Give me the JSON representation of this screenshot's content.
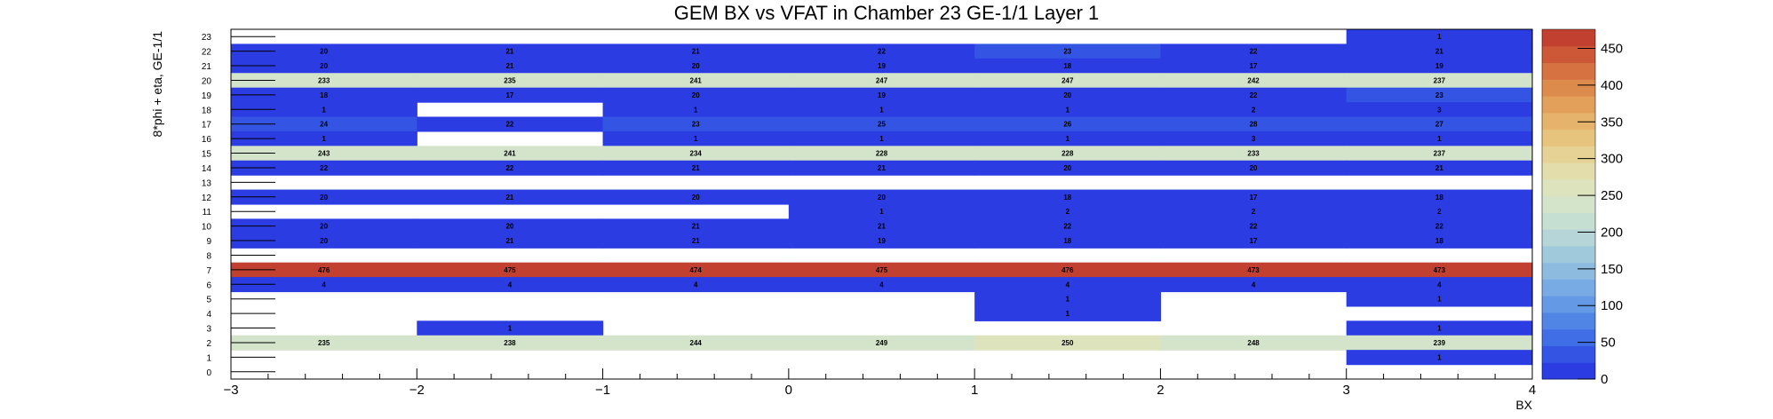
{
  "chart_data": {
    "type": "heatmap",
    "title": "GEM BX vs VFAT in Chamber 23 GE-1/1 Layer 1",
    "xlabel": "BX",
    "ylabel": "8*phi + eta, GE-1/1",
    "xlim": [
      -3,
      4
    ],
    "ylim": [
      0,
      24
    ],
    "x_bins": [
      -2.5,
      -1.5,
      -0.5,
      0.5,
      1.5,
      2.5,
      3.5
    ],
    "x_ticks": [
      -3,
      -2,
      -1,
      0,
      1,
      2,
      3,
      4
    ],
    "x_tick_labels": [
      "−3",
      "−2",
      "−1",
      "0",
      "1",
      "2",
      "3",
      "4"
    ],
    "y_bins": [
      0,
      1,
      2,
      3,
      4,
      5,
      6,
      7,
      8,
      9,
      10,
      11,
      12,
      13,
      14,
      15,
      16,
      17,
      18,
      19,
      20,
      21,
      22,
      23
    ],
    "y_tick_labels": [
      "0",
      "1",
      "2",
      "3",
      "4",
      "5",
      "6",
      "7",
      "8",
      "9",
      "10",
      "11",
      "12",
      "13",
      "14",
      "15",
      "16",
      "17",
      "18",
      "19",
      "20",
      "21",
      "22",
      "23"
    ],
    "zlim": [
      0,
      476
    ],
    "colorbar_ticks": [
      0,
      50,
      100,
      150,
      200,
      250,
      300,
      350,
      400,
      450
    ],
    "colorbar_tick_labels": [
      "0",
      "50",
      "100",
      "150",
      "200",
      "250",
      "300",
      "350",
      "400",
      "450"
    ],
    "cells": [
      {
        "x": 3.5,
        "y": 23,
        "value": 1
      },
      {
        "x": -2.5,
        "y": 22,
        "value": 20
      },
      {
        "x": -1.5,
        "y": 22,
        "value": 21
      },
      {
        "x": -0.5,
        "y": 22,
        "value": 21
      },
      {
        "x": 0.5,
        "y": 22,
        "value": 22
      },
      {
        "x": 1.5,
        "y": 22,
        "value": 23
      },
      {
        "x": 2.5,
        "y": 22,
        "value": 22
      },
      {
        "x": 3.5,
        "y": 22,
        "value": 21
      },
      {
        "x": -2.5,
        "y": 21,
        "value": 20
      },
      {
        "x": -1.5,
        "y": 21,
        "value": 21
      },
      {
        "x": -0.5,
        "y": 21,
        "value": 20
      },
      {
        "x": 0.5,
        "y": 21,
        "value": 19
      },
      {
        "x": 1.5,
        "y": 21,
        "value": 18
      },
      {
        "x": 2.5,
        "y": 21,
        "value": 17
      },
      {
        "x": 3.5,
        "y": 21,
        "value": 19
      },
      {
        "x": -2.5,
        "y": 20,
        "value": 233
      },
      {
        "x": -1.5,
        "y": 20,
        "value": 235
      },
      {
        "x": -0.5,
        "y": 20,
        "value": 241
      },
      {
        "x": 0.5,
        "y": 20,
        "value": 247
      },
      {
        "x": 1.5,
        "y": 20,
        "value": 247
      },
      {
        "x": 2.5,
        "y": 20,
        "value": 242
      },
      {
        "x": 3.5,
        "y": 20,
        "value": 237
      },
      {
        "x": -2.5,
        "y": 19,
        "value": 18
      },
      {
        "x": -1.5,
        "y": 19,
        "value": 17
      },
      {
        "x": -0.5,
        "y": 19,
        "value": 20
      },
      {
        "x": 0.5,
        "y": 19,
        "value": 19
      },
      {
        "x": 1.5,
        "y": 19,
        "value": 20
      },
      {
        "x": 2.5,
        "y": 19,
        "value": 22
      },
      {
        "x": 3.5,
        "y": 19,
        "value": 23
      },
      {
        "x": -2.5,
        "y": 18,
        "value": 1
      },
      {
        "x": -0.5,
        "y": 18,
        "value": 1
      },
      {
        "x": 0.5,
        "y": 18,
        "value": 1
      },
      {
        "x": 1.5,
        "y": 18,
        "value": 1
      },
      {
        "x": 2.5,
        "y": 18,
        "value": 2
      },
      {
        "x": 3.5,
        "y": 18,
        "value": 3
      },
      {
        "x": -2.5,
        "y": 17,
        "value": 24
      },
      {
        "x": -1.5,
        "y": 17,
        "value": 22
      },
      {
        "x": -0.5,
        "y": 17,
        "value": 23
      },
      {
        "x": 0.5,
        "y": 17,
        "value": 25
      },
      {
        "x": 1.5,
        "y": 17,
        "value": 26
      },
      {
        "x": 2.5,
        "y": 17,
        "value": 28
      },
      {
        "x": 3.5,
        "y": 17,
        "value": 27
      },
      {
        "x": -2.5,
        "y": 16,
        "value": 1
      },
      {
        "x": -0.5,
        "y": 16,
        "value": 1
      },
      {
        "x": 0.5,
        "y": 16,
        "value": 1
      },
      {
        "x": 1.5,
        "y": 16,
        "value": 1
      },
      {
        "x": 2.5,
        "y": 16,
        "value": 3
      },
      {
        "x": 3.5,
        "y": 16,
        "value": 1
      },
      {
        "x": -2.5,
        "y": 15,
        "value": 243
      },
      {
        "x": -1.5,
        "y": 15,
        "value": 241
      },
      {
        "x": -0.5,
        "y": 15,
        "value": 234
      },
      {
        "x": 0.5,
        "y": 15,
        "value": 228
      },
      {
        "x": 1.5,
        "y": 15,
        "value": 228
      },
      {
        "x": 2.5,
        "y": 15,
        "value": 233
      },
      {
        "x": 3.5,
        "y": 15,
        "value": 237
      },
      {
        "x": -2.5,
        "y": 14,
        "value": 22
      },
      {
        "x": -1.5,
        "y": 14,
        "value": 22
      },
      {
        "x": -0.5,
        "y": 14,
        "value": 21
      },
      {
        "x": 0.5,
        "y": 14,
        "value": 21
      },
      {
        "x": 1.5,
        "y": 14,
        "value": 20
      },
      {
        "x": 2.5,
        "y": 14,
        "value": 20
      },
      {
        "x": 3.5,
        "y": 14,
        "value": 21
      },
      {
        "x": -2.5,
        "y": 12,
        "value": 20
      },
      {
        "x": -1.5,
        "y": 12,
        "value": 21
      },
      {
        "x": -0.5,
        "y": 12,
        "value": 20
      },
      {
        "x": 0.5,
        "y": 12,
        "value": 20
      },
      {
        "x": 1.5,
        "y": 12,
        "value": 18
      },
      {
        "x": 2.5,
        "y": 12,
        "value": 17
      },
      {
        "x": 3.5,
        "y": 12,
        "value": 18
      },
      {
        "x": 0.5,
        "y": 11,
        "value": 1
      },
      {
        "x": 1.5,
        "y": 11,
        "value": 2
      },
      {
        "x": 2.5,
        "y": 11,
        "value": 2
      },
      {
        "x": 3.5,
        "y": 11,
        "value": 2
      },
      {
        "x": -2.5,
        "y": 10,
        "value": 20
      },
      {
        "x": -1.5,
        "y": 10,
        "value": 20
      },
      {
        "x": -0.5,
        "y": 10,
        "value": 21
      },
      {
        "x": 0.5,
        "y": 10,
        "value": 21
      },
      {
        "x": 1.5,
        "y": 10,
        "value": 22
      },
      {
        "x": 2.5,
        "y": 10,
        "value": 22
      },
      {
        "x": 3.5,
        "y": 10,
        "value": 22
      },
      {
        "x": -2.5,
        "y": 9,
        "value": 20
      },
      {
        "x": -1.5,
        "y": 9,
        "value": 21
      },
      {
        "x": -0.5,
        "y": 9,
        "value": 21
      },
      {
        "x": 0.5,
        "y": 9,
        "value": 19
      },
      {
        "x": 1.5,
        "y": 9,
        "value": 18
      },
      {
        "x": 2.5,
        "y": 9,
        "value": 17
      },
      {
        "x": 3.5,
        "y": 9,
        "value": 18
      },
      {
        "x": -2.5,
        "y": 7,
        "value": 476
      },
      {
        "x": -1.5,
        "y": 7,
        "value": 475
      },
      {
        "x": -0.5,
        "y": 7,
        "value": 474
      },
      {
        "x": 0.5,
        "y": 7,
        "value": 475
      },
      {
        "x": 1.5,
        "y": 7,
        "value": 476
      },
      {
        "x": 2.5,
        "y": 7,
        "value": 473
      },
      {
        "x": 3.5,
        "y": 7,
        "value": 473
      },
      {
        "x": -2.5,
        "y": 6,
        "value": 4
      },
      {
        "x": -1.5,
        "y": 6,
        "value": 4
      },
      {
        "x": -0.5,
        "y": 6,
        "value": 4
      },
      {
        "x": 0.5,
        "y": 6,
        "value": 4
      },
      {
        "x": 1.5,
        "y": 6,
        "value": 4
      },
      {
        "x": 2.5,
        "y": 6,
        "value": 4
      },
      {
        "x": 3.5,
        "y": 6,
        "value": 4
      },
      {
        "x": 1.5,
        "y": 5,
        "value": 1
      },
      {
        "x": 3.5,
        "y": 5,
        "value": 1
      },
      {
        "x": 1.5,
        "y": 4,
        "value": 1
      },
      {
        "x": -1.5,
        "y": 3,
        "value": 1
      },
      {
        "x": 3.5,
        "y": 3,
        "value": 1
      },
      {
        "x": -2.5,
        "y": 2,
        "value": 235
      },
      {
        "x": -1.5,
        "y": 2,
        "value": 238
      },
      {
        "x": -0.5,
        "y": 2,
        "value": 244
      },
      {
        "x": 0.5,
        "y": 2,
        "value": 249
      },
      {
        "x": 1.5,
        "y": 2,
        "value": 250
      },
      {
        "x": 2.5,
        "y": 2,
        "value": 248
      },
      {
        "x": 3.5,
        "y": 2,
        "value": 239
      },
      {
        "x": 3.5,
        "y": 1,
        "value": 1
      }
    ],
    "palette": [
      "#2b3ce2",
      "#3455e4",
      "#3f6ee6",
      "#5085e6",
      "#6399e5",
      "#78aae3",
      "#8dbbdf",
      "#a1c9dc",
      "#b5d5d8",
      "#c6dfd3",
      "#d4e4cb",
      "#dde3bd",
      "#e2ddaa",
      "#e5d294",
      "#e6c47e",
      "#e5b36b",
      "#e2a05b",
      "#dd8a4d",
      "#d67242",
      "#cc5838",
      "#c2402f"
    ],
    "grid": false,
    "legend": "colorbar-right"
  }
}
